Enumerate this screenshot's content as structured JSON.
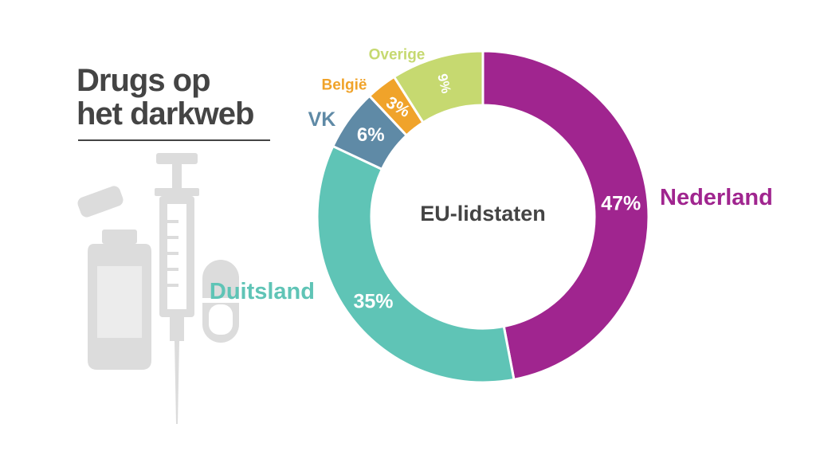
{
  "title": {
    "line1": "Drugs op",
    "line2": "het darkweb"
  },
  "colors": {
    "title": "#444444",
    "illustration": "#dcdcdc",
    "Nederland": "#a0258f",
    "Duitsland": "#5fc4b6",
    "VK": "#5f8aa6",
    "België": "#f0a32a",
    "Overige": "#c6d970"
  },
  "illustration": {
    "icons": [
      "vial-icon",
      "syringe-icon",
      "pill-icon",
      "capsule-icon"
    ]
  },
  "chart_data": {
    "type": "pie",
    "variant": "donut",
    "center_label": "EU-lidstaten",
    "slices": [
      {
        "label": "Nederland",
        "value": 47,
        "value_label": "47%"
      },
      {
        "label": "Duitsland",
        "value": 35,
        "value_label": "35%"
      },
      {
        "label": "VK",
        "value": 6,
        "value_label": "6%"
      },
      {
        "label": "België",
        "value": 3,
        "value_label": "3%"
      },
      {
        "label": "Overige",
        "value": 9,
        "value_label": "9%"
      }
    ]
  }
}
